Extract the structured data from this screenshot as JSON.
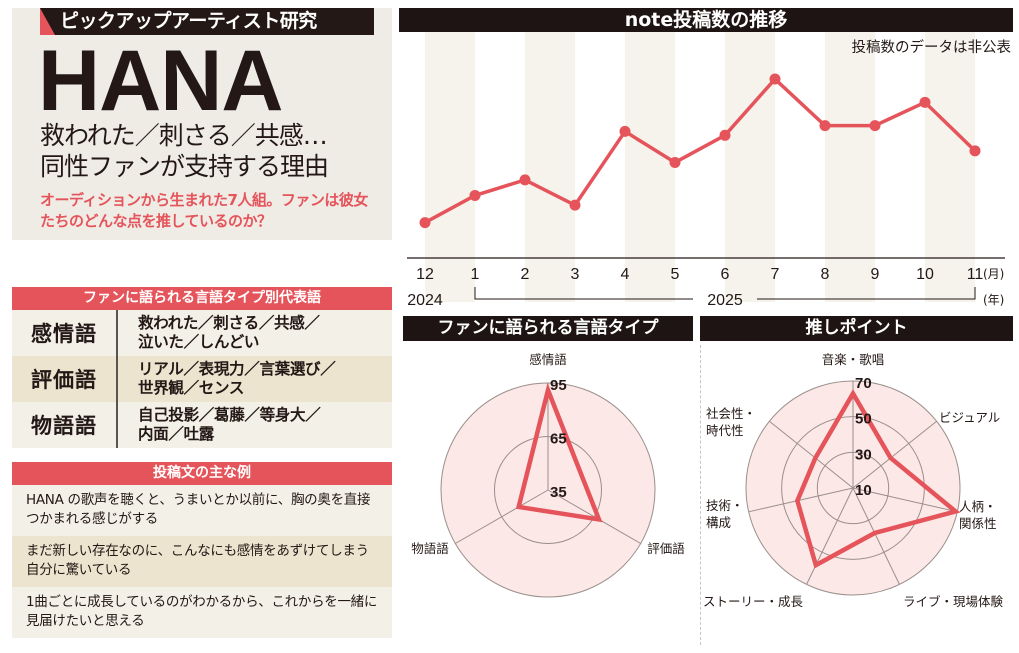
{
  "hero": {
    "kicker": "ピックアップアーティスト研究",
    "title": "HANA",
    "subtitle_line1": "救われた／刺さる／共感…",
    "subtitle_line2": "同性ファンが支持する理由",
    "lead": "オーディションから生まれた7人組。ファンは彼女たちのどんな点を推しているのか？"
  },
  "lexicon": {
    "title": "ファンに語られる言語タイプ別代表語",
    "rows": [
      {
        "term": "感情語",
        "words_line1": "救われた／刺さる／共感／",
        "words_line2": "泣いた／しんどい"
      },
      {
        "term": "評価語",
        "words_line1": "リアル／表現力／言葉選び／",
        "words_line2": "世界観／センス"
      },
      {
        "term": "物語語",
        "words_line1": "自己投影／葛藤／等身大／",
        "words_line2": "内面／吐露"
      }
    ]
  },
  "examples": {
    "title": "投稿文の主な例",
    "items": [
      "HANA の歌声を聴くと、うまいとか以前に、胸の奥を直接つかまれる感じがする",
      "まだ新しい存在なのに、こんなにも感情をあずけてしまう自分に驚いている",
      "1曲ごとに成長しているのがわかるから、これからを一緒に見届けたいと思える"
    ]
  },
  "colors": {
    "accent_red": "#e5545a",
    "dark": "#1e1413",
    "stripe": "#f6f3ec",
    "radar_fill": "#fce8e6"
  },
  "chart_data": [
    {
      "type": "line",
      "title": "note投稿数の推移",
      "annotation": "投稿数のデータは非公表",
      "categories": [
        "12",
        "1",
        "2",
        "3",
        "4",
        "5",
        "6",
        "7",
        "8",
        "9",
        "10",
        "11"
      ],
      "values": [
        10,
        24,
        32,
        19,
        57,
        41,
        55,
        84,
        60,
        60,
        72,
        47
      ],
      "value_note": "relative index (0–100), y-axis unlabeled",
      "xlabel_unit": "(月)",
      "year_unit": "(年)",
      "year_labels": [
        {
          "label": "2024",
          "span": [
            "12"
          ]
        },
        {
          "label": "2025",
          "span": [
            "1",
            "11"
          ]
        }
      ],
      "ylim": [
        0,
        100
      ],
      "grid": "alternating vertical stripes"
    },
    {
      "type": "radar",
      "title": "ファンに語られる言語タイプ",
      "axes": [
        "感情語",
        "評価語",
        "物語語"
      ],
      "values": [
        91,
        68,
        54
      ],
      "ticks": [
        35,
        65,
        95
      ],
      "range": [
        35,
        95
      ]
    },
    {
      "type": "radar",
      "title": "推しポイント",
      "axes": [
        "音楽・歌唱",
        "ビジュアル",
        "人柄・関係性",
        "ライブ・現場体験",
        "ストーリー・成長",
        "技術・構成",
        "社会性・時代性"
      ],
      "values": [
        63,
        37,
        69,
        38,
        58,
        42,
        37
      ],
      "ticks": [
        10,
        30,
        50,
        70
      ],
      "range": [
        10,
        70
      ]
    }
  ]
}
